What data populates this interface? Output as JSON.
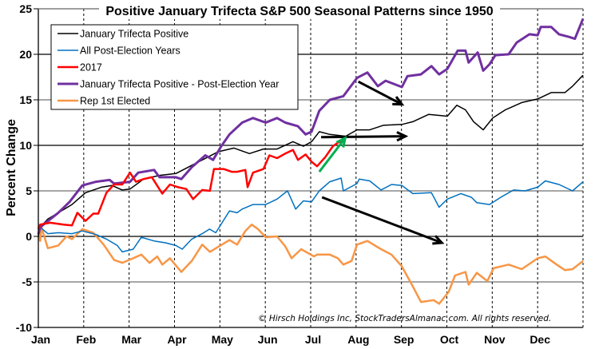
{
  "chart_data": {
    "type": "line",
    "title": "Positive January Trifecta S&P 500 Seasonal Patterns since 1950",
    "xlabel": "",
    "ylabel": "Percent Change",
    "ylim": [
      -10,
      25
    ],
    "yticks": [
      -10,
      -5,
      0,
      5,
      10,
      15,
      20,
      25
    ],
    "xlim": [
      0,
      12
    ],
    "x_unit": "months from Jan 1",
    "xtick_labels": [
      "Jan",
      "Feb",
      "Mar",
      "Apr",
      "May",
      "Jun",
      "Jul",
      "Aug",
      "Sep",
      "Oct",
      "Nov",
      "Dec"
    ],
    "grid": true,
    "legend_position": "top-left",
    "copyright": "© Hirsch Holdings Inc, StockTradersAlmanac.com. All rights reserved.",
    "series": [
      {
        "name": "January Trifecta Positive",
        "color": "#000000",
        "width": 1.5,
        "points": [
          [
            0,
            0
          ],
          [
            0.04,
            1.0
          ],
          [
            0.21,
            1.9
          ],
          [
            0.74,
            3.5
          ],
          [
            1.04,
            4.8
          ],
          [
            1.39,
            5.4
          ],
          [
            1.62,
            5.6
          ],
          [
            1.85,
            5.1
          ],
          [
            2.02,
            5.2
          ],
          [
            2.32,
            6.3
          ],
          [
            2.67,
            6.7
          ],
          [
            3.03,
            6.9
          ],
          [
            3.38,
            7.8
          ],
          [
            3.73,
            8.7
          ],
          [
            3.96,
            9.3
          ],
          [
            4.31,
            9.7
          ],
          [
            4.65,
            9.1
          ],
          [
            4.96,
            9.6
          ],
          [
            5.26,
            9.6
          ],
          [
            5.61,
            10.4
          ],
          [
            5.84,
            9.9
          ],
          [
            6.02,
            10.4
          ],
          [
            6.19,
            11.5
          ],
          [
            6.42,
            11.2
          ],
          [
            6.77,
            11.0
          ],
          [
            7.02,
            11.7
          ],
          [
            7.3,
            11.7
          ],
          [
            7.6,
            12.2
          ],
          [
            8.01,
            12.3
          ],
          [
            8.25,
            12.6
          ],
          [
            8.6,
            13.4
          ],
          [
            9.01,
            13.2
          ],
          [
            9.22,
            14.4
          ],
          [
            9.41,
            13.9
          ],
          [
            9.59,
            12.6
          ],
          [
            9.8,
            11.7
          ],
          [
            10.01,
            13.0
          ],
          [
            10.29,
            13.9
          ],
          [
            10.65,
            14.7
          ],
          [
            11.0,
            15.1
          ],
          [
            11.3,
            15.8
          ],
          [
            11.6,
            15.8
          ],
          [
            11.77,
            16.5
          ],
          [
            12.0,
            17.7
          ]
        ]
      },
      {
        "name": "All Post-Election Years",
        "color": "#0070C0",
        "width": 1.5,
        "points": [
          [
            0,
            0
          ],
          [
            0.04,
            1.0
          ],
          [
            0.21,
            0.3
          ],
          [
            0.44,
            0.4
          ],
          [
            0.74,
            0.3
          ],
          [
            0.97,
            0.6
          ],
          [
            1.27,
            0.2
          ],
          [
            1.5,
            -0.3
          ],
          [
            1.74,
            -1.0
          ],
          [
            1.85,
            -1.7
          ],
          [
            2.09,
            -1.4
          ],
          [
            2.27,
            -0.1
          ],
          [
            2.55,
            -0.5
          ],
          [
            2.8,
            -0.7
          ],
          [
            3.03,
            -1.0
          ],
          [
            3.17,
            -1.4
          ],
          [
            3.38,
            -0.3
          ],
          [
            3.61,
            0.3
          ],
          [
            3.77,
            0.8
          ],
          [
            3.91,
            0.4
          ],
          [
            4.21,
            2.8
          ],
          [
            4.38,
            2.6
          ],
          [
            4.49,
            3.0
          ],
          [
            4.73,
            3.5
          ],
          [
            5.01,
            3.5
          ],
          [
            5.26,
            4.1
          ],
          [
            5.49,
            5.0
          ],
          [
            5.67,
            3.0
          ],
          [
            5.84,
            3.9
          ],
          [
            6.02,
            3.8
          ],
          [
            6.19,
            5.0
          ],
          [
            6.42,
            6.0
          ],
          [
            6.67,
            6.4
          ],
          [
            6.72,
            5.0
          ],
          [
            7.02,
            5.8
          ],
          [
            7.07,
            6.3
          ],
          [
            7.3,
            6.1
          ],
          [
            7.55,
            5.1
          ],
          [
            7.78,
            5.7
          ],
          [
            8.01,
            5.6
          ],
          [
            8.25,
            4.7
          ],
          [
            8.66,
            4.8
          ],
          [
            8.83,
            3.2
          ],
          [
            9.01,
            4.1
          ],
          [
            9.31,
            4.7
          ],
          [
            9.54,
            4.3
          ],
          [
            9.66,
            3.7
          ],
          [
            9.94,
            3.5
          ],
          [
            10.19,
            4.3
          ],
          [
            10.47,
            5.1
          ],
          [
            10.72,
            5.0
          ],
          [
            11.0,
            5.4
          ],
          [
            11.17,
            6.1
          ],
          [
            11.47,
            5.7
          ],
          [
            11.77,
            5.0
          ],
          [
            12.0,
            6.0
          ]
        ]
      },
      {
        "name": "2017",
        "color": "#FF0000",
        "width": 2.5,
        "points": [
          [
            0,
            0.8
          ],
          [
            0.04,
            1.3
          ],
          [
            0.26,
            1.5
          ],
          [
            0.56,
            1.3
          ],
          [
            0.74,
            1.2
          ],
          [
            0.86,
            2.6
          ],
          [
            1.04,
            1.7
          ],
          [
            1.21,
            2.5
          ],
          [
            1.32,
            2.5
          ],
          [
            1.5,
            4.8
          ],
          [
            1.67,
            5.7
          ],
          [
            1.85,
            5.7
          ],
          [
            2.02,
            7.0
          ],
          [
            2.15,
            6.0
          ],
          [
            2.32,
            6.3
          ],
          [
            2.5,
            6.5
          ],
          [
            2.73,
            4.7
          ],
          [
            2.9,
            5.7
          ],
          [
            3.08,
            5.4
          ],
          [
            3.26,
            5.2
          ],
          [
            3.41,
            4.1
          ],
          [
            3.61,
            5.1
          ],
          [
            3.78,
            5.0
          ],
          [
            3.87,
            7.4
          ],
          [
            4.08,
            7.4
          ],
          [
            4.26,
            7.1
          ],
          [
            4.38,
            7.1
          ],
          [
            4.56,
            7.3
          ],
          [
            4.61,
            5.4
          ],
          [
            4.73,
            7.0
          ],
          [
            4.96,
            7.4
          ],
          [
            5.09,
            8.9
          ],
          [
            5.26,
            8.6
          ],
          [
            5.44,
            9.1
          ],
          [
            5.61,
            9.5
          ],
          [
            5.72,
            8.4
          ],
          [
            5.89,
            9.0
          ],
          [
            6.02,
            8.2
          ],
          [
            6.14,
            7.7
          ],
          [
            6.32,
            8.7
          ],
          [
            6.49,
            9.9
          ],
          [
            6.6,
            10.3
          ],
          [
            6.76,
            10.7
          ]
        ]
      },
      {
        "name": "January Trifecta Positive - Post-Election Year",
        "color": "#7030A0",
        "width": 3,
        "points": [
          [
            0,
            0.2
          ],
          [
            0.04,
            1.0
          ],
          [
            0.44,
            2.6
          ],
          [
            0.69,
            3.8
          ],
          [
            0.97,
            5.6
          ],
          [
            1.27,
            6.0
          ],
          [
            1.57,
            6.2
          ],
          [
            1.67,
            5.8
          ],
          [
            2.02,
            6.0
          ],
          [
            2.2,
            7.0
          ],
          [
            2.55,
            7.3
          ],
          [
            2.67,
            6.5
          ],
          [
            3.03,
            6.5
          ],
          [
            3.15,
            6.3
          ],
          [
            3.38,
            7.6
          ],
          [
            3.68,
            8.9
          ],
          [
            3.85,
            8.4
          ],
          [
            4.03,
            9.9
          ],
          [
            4.21,
            11.2
          ],
          [
            4.49,
            12.5
          ],
          [
            4.73,
            13.0
          ],
          [
            5.01,
            12.5
          ],
          [
            5.26,
            13.0
          ],
          [
            5.44,
            12.5
          ],
          [
            5.72,
            12.1
          ],
          [
            5.89,
            11.2
          ],
          [
            6.02,
            11.5
          ],
          [
            6.19,
            13.8
          ],
          [
            6.42,
            15.0
          ],
          [
            6.72,
            15.4
          ],
          [
            7.02,
            17.4
          ],
          [
            7.25,
            18.0
          ],
          [
            7.48,
            16.5
          ],
          [
            7.65,
            17.1
          ],
          [
            8.01,
            16.4
          ],
          [
            8.13,
            17.6
          ],
          [
            8.43,
            17.8
          ],
          [
            8.66,
            18.7
          ],
          [
            8.83,
            17.8
          ],
          [
            9.01,
            18.4
          ],
          [
            9.24,
            20.4
          ],
          [
            9.41,
            20.4
          ],
          [
            9.48,
            19.1
          ],
          [
            9.68,
            20.2
          ],
          [
            9.8,
            18.2
          ],
          [
            9.94,
            18.9
          ],
          [
            10.07,
            19.9
          ],
          [
            10.36,
            20.0
          ],
          [
            10.54,
            21.3
          ],
          [
            10.82,
            22.2
          ],
          [
            11.0,
            22.1
          ],
          [
            11.07,
            23.0
          ],
          [
            11.3,
            23.0
          ],
          [
            11.47,
            22.2
          ],
          [
            11.7,
            21.9
          ],
          [
            11.82,
            21.7
          ],
          [
            12.0,
            23.9
          ]
        ]
      },
      {
        "name": "Rep 1st Elected",
        "color": "#F79646",
        "width": 2.5,
        "points": [
          [
            0,
            0
          ],
          [
            0.04,
            -0.5
          ],
          [
            0.07,
            1.0
          ],
          [
            0.21,
            -1.3
          ],
          [
            0.44,
            -1.0
          ],
          [
            0.62,
            0.0
          ],
          [
            0.74,
            -0.3
          ],
          [
            0.97,
            0.8
          ],
          [
            1.21,
            0.4
          ],
          [
            1.44,
            -0.9
          ],
          [
            1.67,
            -2.6
          ],
          [
            1.85,
            -2.9
          ],
          [
            2.09,
            -2.4
          ],
          [
            2.27,
            -2.0
          ],
          [
            2.45,
            -2.9
          ],
          [
            2.62,
            -2.2
          ],
          [
            2.73,
            -3.1
          ],
          [
            2.9,
            -2.4
          ],
          [
            3.15,
            -3.9
          ],
          [
            3.38,
            -2.7
          ],
          [
            3.61,
            -0.9
          ],
          [
            3.78,
            -1.7
          ],
          [
            4.21,
            -0.4
          ],
          [
            4.38,
            -0.9
          ],
          [
            4.56,
            0.6
          ],
          [
            4.7,
            1.3
          ],
          [
            4.84,
            0.8
          ],
          [
            5.01,
            -0.1
          ],
          [
            5.26,
            0.0
          ],
          [
            5.44,
            -1.1
          ],
          [
            5.58,
            -2.4
          ],
          [
            5.79,
            -1.4
          ],
          [
            6.07,
            -2.2
          ],
          [
            6.14,
            -2.0
          ],
          [
            6.42,
            -2.0
          ],
          [
            6.6,
            -2.4
          ],
          [
            6.72,
            -3.1
          ],
          [
            6.9,
            -2.7
          ],
          [
            7.02,
            -0.9
          ],
          [
            7.25,
            -0.5
          ],
          [
            7.55,
            -1.4
          ],
          [
            7.78,
            -2.0
          ],
          [
            8.01,
            -3.3
          ],
          [
            8.25,
            -5.5
          ],
          [
            8.43,
            -7.2
          ],
          [
            8.71,
            -7.0
          ],
          [
            8.83,
            -7.4
          ],
          [
            9.04,
            -6.1
          ],
          [
            9.18,
            -4.3
          ],
          [
            9.41,
            -3.9
          ],
          [
            9.48,
            -5.3
          ],
          [
            9.66,
            -4.0
          ],
          [
            9.89,
            -4.9
          ],
          [
            10.03,
            -3.5
          ],
          [
            10.36,
            -3.1
          ],
          [
            10.65,
            -3.6
          ],
          [
            11.0,
            -2.4
          ],
          [
            11.17,
            -2.2
          ],
          [
            11.42,
            -3.1
          ],
          [
            11.6,
            -3.7
          ],
          [
            11.77,
            -3.6
          ],
          [
            12.0,
            -2.7
          ]
        ]
      }
    ],
    "annotations": [
      {
        "type": "arrow",
        "color": "#000000",
        "from": [
          7.05,
          17.0
        ],
        "to": [
          8.01,
          14.5
        ]
      },
      {
        "type": "arrow",
        "color": "#000000",
        "from": [
          6.23,
          10.9
        ],
        "to": [
          8.09,
          11.0
        ]
      },
      {
        "type": "arrow",
        "color": "#000000",
        "from": [
          6.25,
          4.3
        ],
        "to": [
          8.89,
          -0.7
        ]
      },
      {
        "type": "arrow",
        "color": "#00B050",
        "from": [
          6.19,
          7.1
        ],
        "to": [
          6.76,
          10.8
        ]
      }
    ]
  }
}
